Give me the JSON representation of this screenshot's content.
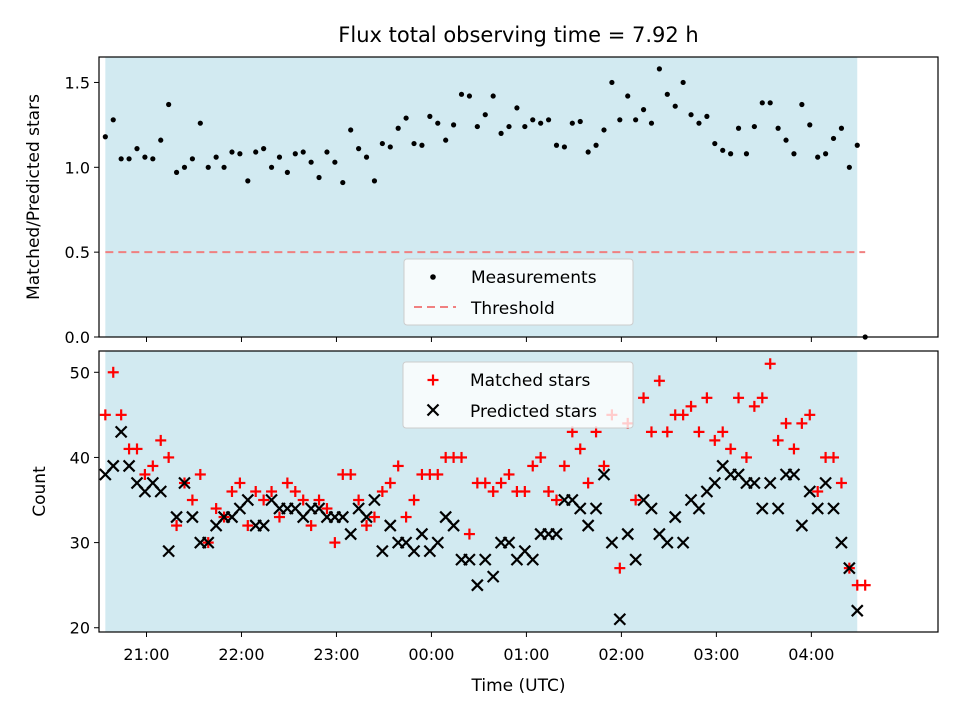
{
  "colors": {
    "background": "#ffffff",
    "observing_window": "#add8e6",
    "measurements": "#000000",
    "threshold": "#f08080",
    "matched": "#ff0000",
    "predicted": "#000000"
  },
  "chart_data": [
    {
      "type": "scatter",
      "title": "Flux total observing time = 7.92 h",
      "xlabel": "",
      "ylabel": "Matched/Predicted stars",
      "xlim": [
        "20:30",
        "05:20"
      ],
      "ylim": [
        0,
        1.65
      ],
      "yticks": [
        0.0,
        0.5,
        1.0,
        1.5
      ],
      "ytick_labels": [
        "0.0",
        "0.5",
        "1.0",
        "1.5"
      ],
      "observing_window": [
        "20:34",
        "04:29"
      ],
      "legend": {
        "placement": "lower-center",
        "entries": [
          "Measurements",
          "Threshold"
        ]
      },
      "threshold": {
        "name": "Threshold",
        "value": 0.5,
        "style": "dashed"
      },
      "series": [
        {
          "name": "Measurements",
          "marker": "dot",
          "x": [
            "20:34",
            "20:39",
            "20:44",
            "20:49",
            "20:54",
            "20:59",
            "21:04",
            "21:09",
            "21:14",
            "21:19",
            "21:24",
            "21:29",
            "21:34",
            "21:39",
            "21:44",
            "21:49",
            "21:54",
            "21:59",
            "22:04",
            "22:09",
            "22:14",
            "22:19",
            "22:24",
            "22:29",
            "22:34",
            "22:39",
            "22:44",
            "22:49",
            "22:54",
            "22:59",
            "23:04",
            "23:09",
            "23:14",
            "23:19",
            "23:24",
            "23:29",
            "23:34",
            "23:39",
            "23:44",
            "23:49",
            "23:54",
            "23:59",
            "00:04",
            "00:09",
            "00:14",
            "00:19",
            "00:24",
            "00:29",
            "00:34",
            "00:39",
            "00:44",
            "00:49",
            "00:54",
            "00:59",
            "01:04",
            "01:09",
            "01:14",
            "01:19",
            "01:24",
            "01:29",
            "01:34",
            "01:39",
            "01:44",
            "01:49",
            "01:54",
            "01:59",
            "02:04",
            "02:09",
            "02:14",
            "02:19",
            "02:24",
            "02:29",
            "02:34",
            "02:39",
            "02:44",
            "02:49",
            "02:54",
            "02:59",
            "03:04",
            "03:09",
            "03:14",
            "03:19",
            "03:24",
            "03:29",
            "03:34",
            "03:39",
            "03:44",
            "03:49",
            "03:54",
            "03:59",
            "04:04",
            "04:09",
            "04:14",
            "04:19",
            "04:24",
            "04:29",
            "04:34"
          ],
          "y": [
            1.18,
            1.28,
            1.05,
            1.05,
            1.11,
            1.06,
            1.05,
            1.16,
            1.37,
            0.97,
            1.0,
            1.05,
            1.26,
            1.0,
            1.06,
            1.0,
            1.09,
            1.08,
            0.92,
            1.09,
            1.11,
            1.0,
            1.06,
            0.97,
            1.08,
            1.09,
            1.03,
            0.94,
            1.09,
            1.03,
            0.91,
            1.22,
            1.11,
            1.06,
            0.92,
            1.14,
            1.12,
            1.23,
            1.29,
            1.14,
            1.13,
            1.3,
            1.26,
            1.16,
            1.25,
            1.43,
            1.42,
            1.24,
            1.31,
            1.42,
            1.2,
            1.24,
            1.35,
            1.24,
            1.28,
            1.26,
            1.28,
            1.13,
            1.12,
            1.26,
            1.27,
            1.09,
            1.13,
            1.22,
            1.5,
            1.28,
            1.42,
            1.28,
            1.34,
            1.26,
            1.58,
            1.43,
            1.36,
            1.5,
            1.31,
            1.26,
            1.3,
            1.14,
            1.1,
            1.08,
            1.23,
            1.08,
            1.24,
            1.38,
            1.38,
            1.23,
            1.16,
            1.08,
            1.37,
            1.25,
            1.06,
            1.08,
            1.17,
            1.23,
            1.0,
            1.13,
            0.0
          ]
        }
      ]
    },
    {
      "type": "scatter",
      "title": "",
      "xlabel": "Time (UTC)",
      "ylabel": "Count",
      "xlim": [
        "20:30",
        "05:20"
      ],
      "ylim": [
        19.5,
        52.5
      ],
      "yticks": [
        20,
        30,
        40,
        50
      ],
      "ytick_labels": [
        "20",
        "30",
        "40",
        "50"
      ],
      "xticks": [
        "21:00",
        "22:00",
        "23:00",
        "00:00",
        "01:00",
        "02:00",
        "03:00",
        "04:00"
      ],
      "observing_window": [
        "20:34",
        "04:29"
      ],
      "legend": {
        "placement": "upper-center",
        "entries": [
          "Matched stars",
          "Predicted stars"
        ]
      },
      "series": [
        {
          "name": "Matched stars",
          "marker": "plus",
          "x": [
            "20:34",
            "20:39",
            "20:44",
            "20:49",
            "20:54",
            "20:59",
            "21:04",
            "21:09",
            "21:14",
            "21:19",
            "21:24",
            "21:29",
            "21:34",
            "21:39",
            "21:44",
            "21:49",
            "21:54",
            "21:59",
            "22:04",
            "22:09",
            "22:14",
            "22:19",
            "22:24",
            "22:29",
            "22:34",
            "22:39",
            "22:44",
            "22:49",
            "22:54",
            "22:59",
            "23:04",
            "23:09",
            "23:14",
            "23:19",
            "23:24",
            "23:29",
            "23:34",
            "23:39",
            "23:44",
            "23:49",
            "23:54",
            "23:59",
            "00:04",
            "00:09",
            "00:14",
            "00:19",
            "00:24",
            "00:29",
            "00:34",
            "00:39",
            "00:44",
            "00:49",
            "00:54",
            "00:59",
            "01:04",
            "01:09",
            "01:14",
            "01:19",
            "01:24",
            "01:29",
            "01:34",
            "01:39",
            "01:44",
            "01:49",
            "01:54",
            "01:59",
            "02:04",
            "02:09",
            "02:14",
            "02:19",
            "02:24",
            "02:29",
            "02:34",
            "02:39",
            "02:44",
            "02:49",
            "02:54",
            "02:59",
            "03:04",
            "03:09",
            "03:14",
            "03:19",
            "03:24",
            "03:29",
            "03:34",
            "03:39",
            "03:44",
            "03:49",
            "03:54",
            "03:59",
            "04:04",
            "04:09",
            "04:14",
            "04:19",
            "04:24",
            "04:29",
            "04:34"
          ],
          "y": [
            45,
            50,
            45,
            41,
            41,
            38,
            39,
            42,
            40,
            32,
            37,
            35,
            38,
            30,
            34,
            33,
            36,
            37,
            32,
            36,
            35,
            36,
            33,
            37,
            36,
            35,
            32,
            35,
            34,
            30,
            38,
            38,
            35,
            32,
            33,
            36,
            37,
            39,
            33,
            35,
            38,
            38,
            38,
            40,
            40,
            40,
            31,
            37,
            37,
            36,
            37,
            38,
            36,
            36,
            39,
            40,
            36,
            35,
            39,
            43,
            41,
            37,
            43,
            39,
            45,
            27,
            44,
            35,
            47,
            43,
            49,
            43,
            45,
            45,
            46,
            43,
            47,
            42,
            43,
            41,
            47,
            40,
            46,
            47,
            51,
            42,
            44,
            41,
            44,
            45,
            36,
            40,
            40,
            37,
            27,
            25,
            25
          ]
        },
        {
          "name": "Predicted stars",
          "marker": "x",
          "x": [
            "20:34",
            "20:39",
            "20:44",
            "20:49",
            "20:54",
            "20:59",
            "21:04",
            "21:09",
            "21:14",
            "21:19",
            "21:24",
            "21:29",
            "21:34",
            "21:39",
            "21:44",
            "21:49",
            "21:54",
            "21:59",
            "22:04",
            "22:09",
            "22:14",
            "22:19",
            "22:24",
            "22:29",
            "22:34",
            "22:39",
            "22:44",
            "22:49",
            "22:54",
            "22:59",
            "23:04",
            "23:09",
            "23:14",
            "23:19",
            "23:24",
            "23:29",
            "23:34",
            "23:39",
            "23:44",
            "23:49",
            "23:54",
            "23:59",
            "00:04",
            "00:09",
            "00:14",
            "00:19",
            "00:24",
            "00:29",
            "00:34",
            "00:39",
            "00:44",
            "00:49",
            "00:54",
            "00:59",
            "01:04",
            "01:09",
            "01:14",
            "01:19",
            "01:24",
            "01:29",
            "01:34",
            "01:39",
            "01:44",
            "01:49",
            "01:54",
            "01:59",
            "02:04",
            "02:09",
            "02:14",
            "02:19",
            "02:24",
            "02:29",
            "02:34",
            "02:39",
            "02:44",
            "02:49",
            "02:54",
            "02:59",
            "03:04",
            "03:09",
            "03:14",
            "03:19",
            "03:24",
            "03:29",
            "03:34",
            "03:39",
            "03:44",
            "03:49",
            "03:54",
            "03:59",
            "04:04",
            "04:09",
            "04:14",
            "04:19",
            "04:24",
            "04:29"
          ],
          "y": [
            38,
            39,
            43,
            39,
            37,
            36,
            37,
            36,
            29,
            33,
            37,
            33,
            30,
            30,
            32,
            33,
            33,
            34,
            35,
            32,
            32,
            35,
            34,
            34,
            34,
            33,
            34,
            34,
            33,
            33,
            33,
            31,
            34,
            33,
            35,
            29,
            32,
            30,
            30,
            29,
            31,
            29,
            30,
            33,
            32,
            28,
            28,
            25,
            28,
            26,
            30,
            30,
            28,
            29,
            28,
            31,
            31,
            31,
            35,
            35,
            34,
            32,
            34,
            38,
            30,
            21,
            31,
            28,
            35,
            34,
            31,
            30,
            33,
            30,
            35,
            34,
            36,
            37,
            39,
            38,
            38,
            37,
            37,
            34,
            37,
            34,
            38,
            38,
            32,
            36,
            34,
            37,
            34,
            30,
            27,
            22
          ]
        }
      ]
    }
  ]
}
